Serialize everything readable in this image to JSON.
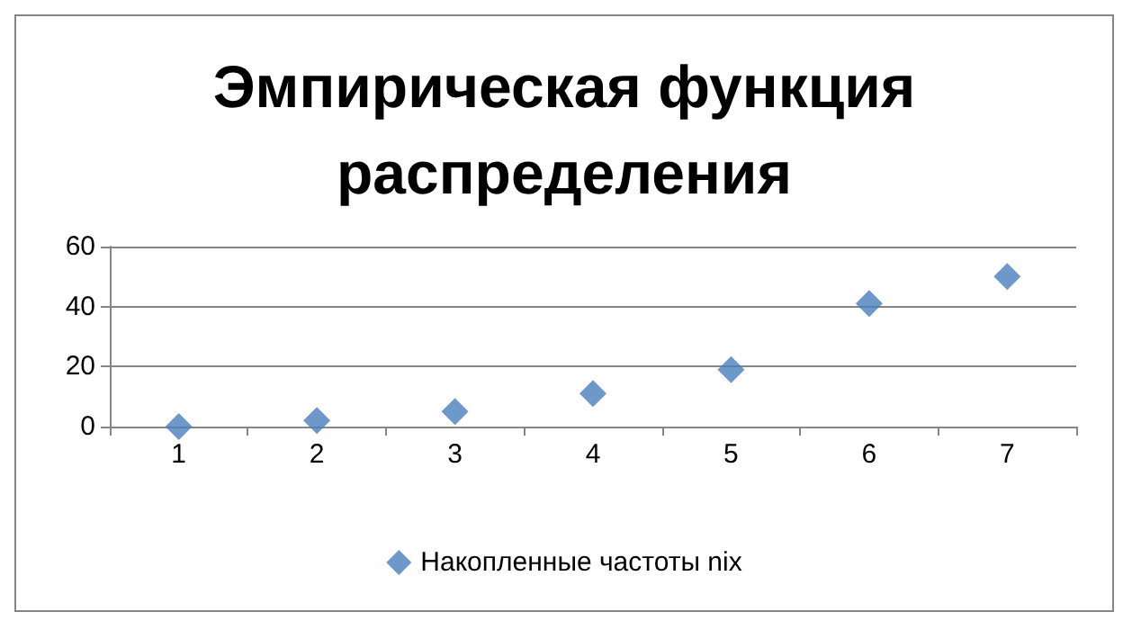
{
  "chart_data": {
    "type": "scatter",
    "title": "Эмпирическая функция\nраспределения",
    "categories": [
      "1",
      "2",
      "3",
      "4",
      "5",
      "6",
      "7"
    ],
    "series": [
      {
        "name": "Накопленные частоты nix",
        "color": "#4a7ebb",
        "values": [
          0,
          2,
          5,
          11,
          19,
          41,
          50
        ]
      }
    ],
    "ylim": [
      0,
      60
    ],
    "yticks": [
      0,
      20,
      40,
      60
    ],
    "grid": "y",
    "legend": "bottom",
    "marker": "diamond"
  }
}
